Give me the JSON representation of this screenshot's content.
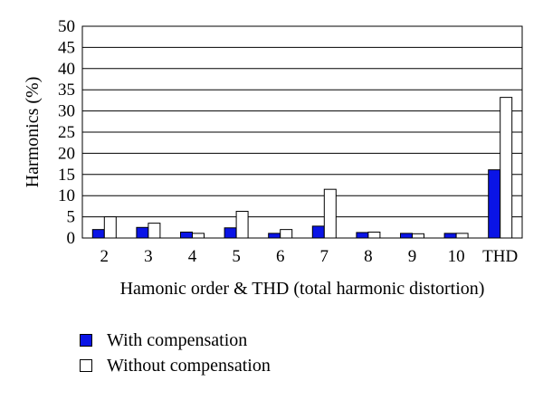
{
  "chart_data": {
    "type": "bar",
    "categories": [
      "2",
      "3",
      "4",
      "5",
      "6",
      "7",
      "8",
      "9",
      "10",
      "THD"
    ],
    "series": [
      {
        "name": "With compensation",
        "color": "#0a14e6",
        "values": [
          2,
          2.5,
          1.4,
          2.4,
          1.1,
          2.8,
          1.3,
          1.1,
          1.1,
          16.1
        ]
      },
      {
        "name": "Without compensation",
        "color": "#ffffff",
        "values": [
          5,
          3.5,
          1.1,
          6.3,
          2,
          11.5,
          1.4,
          1.0,
          1.1,
          33.2
        ]
      }
    ],
    "xlabel": "Hamonic order & THD (total harmonic distortion)",
    "ylabel": "Harmonics (%)",
    "ylim": [
      0,
      50
    ],
    "yticks": [
      "0",
      "5",
      "10",
      "15",
      "20",
      "25",
      "30",
      "35",
      "40",
      "45",
      "50"
    ],
    "grid": true,
    "legend_position": "bottom-left"
  }
}
